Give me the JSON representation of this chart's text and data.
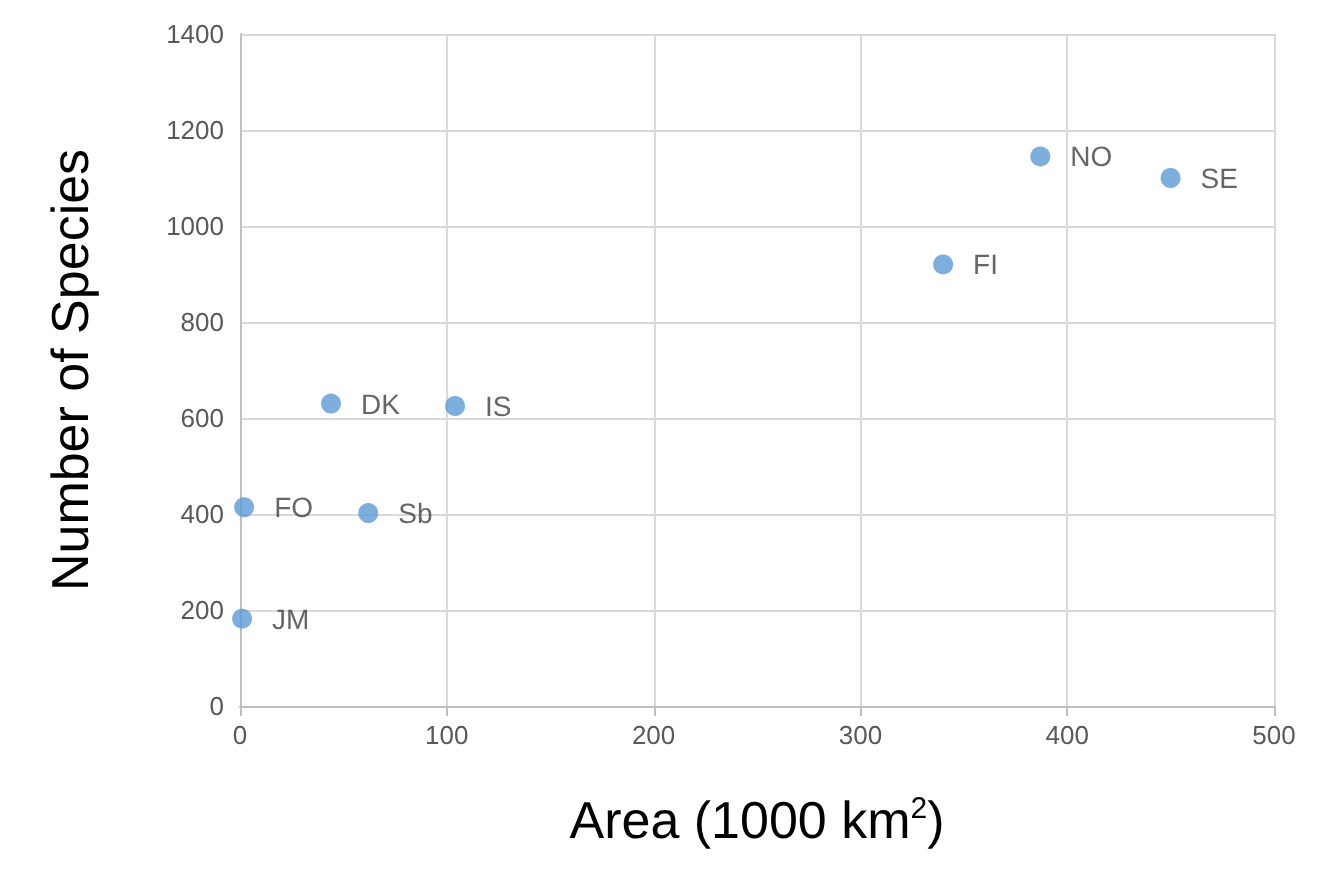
{
  "chart_data": {
    "type": "scatter",
    "xlabel": "Area (1000 km$^{2}$)",
    "ylabel": "Number of Species",
    "x": [
      387,
      450,
      340,
      44,
      104,
      2,
      62,
      1
    ],
    "values": [
      1145,
      1100,
      920,
      630,
      625,
      414,
      402,
      182
    ],
    "color": "#5b9bd5",
    "marker": "circle",
    "xlim": [
      0,
      500
    ],
    "xticks": [
      0,
      100,
      200,
      300,
      400,
      500
    ],
    "ylim": [
      0,
      1400
    ],
    "yticks": [
      0,
      200,
      400,
      600,
      800,
      1000,
      1200,
      1400
    ],
    "grid": true,
    "annotations": [
      {
        "text": "NO",
        "x": 387,
        "y": 1145
      },
      {
        "text": "SE",
        "x": 450,
        "y": 1100
      },
      {
        "text": "FI",
        "x": 340,
        "y": 920
      },
      {
        "text": "DK",
        "x": 44,
        "y": 630
      },
      {
        "text": "IS",
        "x": 104,
        "y": 625
      },
      {
        "text": "FO",
        "x": 2,
        "y": 414
      },
      {
        "text": "Sb",
        "x": 62,
        "y": 402
      },
      {
        "text": "JM",
        "x": 1,
        "y": 182
      }
    ]
  }
}
